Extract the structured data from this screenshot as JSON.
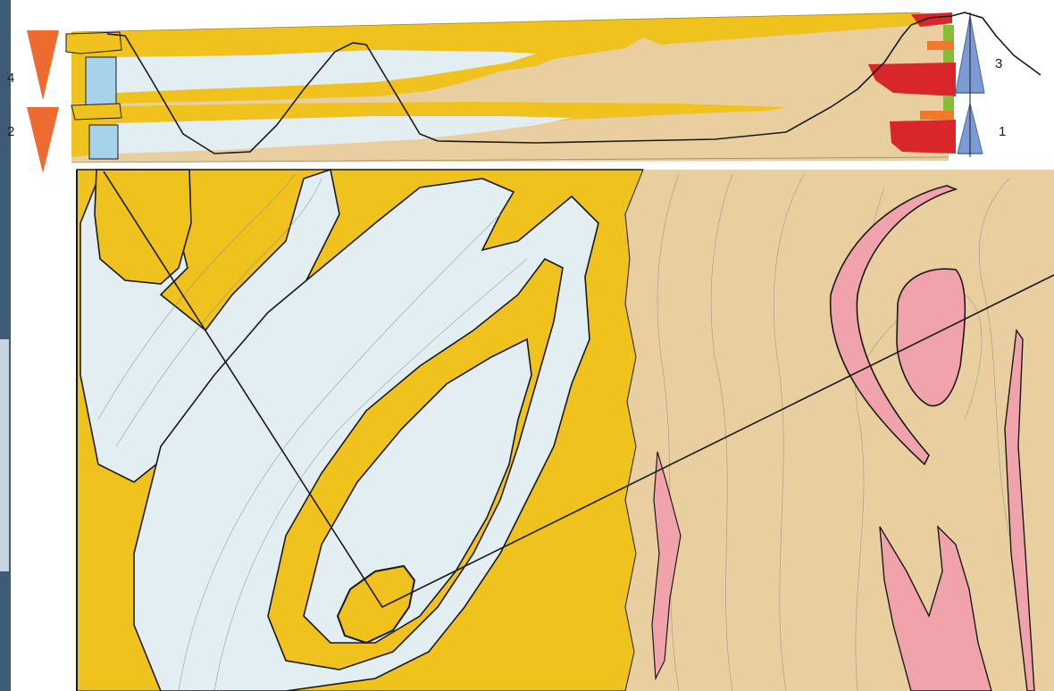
{
  "figure": {
    "labels": [
      {
        "id": "4",
        "text": "4"
      },
      {
        "id": "2",
        "text": "2"
      },
      {
        "id": "3",
        "text": "3"
      },
      {
        "id": "1",
        "text": "1"
      }
    ]
  },
  "colors": {
    "yellow_layer": "#f0c21d",
    "light_blue_layer": "#e3eef3",
    "tan_layer": "#e9cf9f",
    "pink_layer": "#f1a3ac",
    "red_unit": "#d8262b",
    "orange_unit": "#ee7a2e",
    "green_unit": "#86bd37",
    "sky_blue_unit": "#a7d3ea",
    "down_arrow": "#ee6b2f",
    "up_arrow": "#7d9bd3",
    "outline": "#1a1a1a",
    "contour": "#8a8a8a"
  },
  "icons": {
    "down_arrows": "downward-triangle",
    "up_arrows": "upward-triangle"
  }
}
